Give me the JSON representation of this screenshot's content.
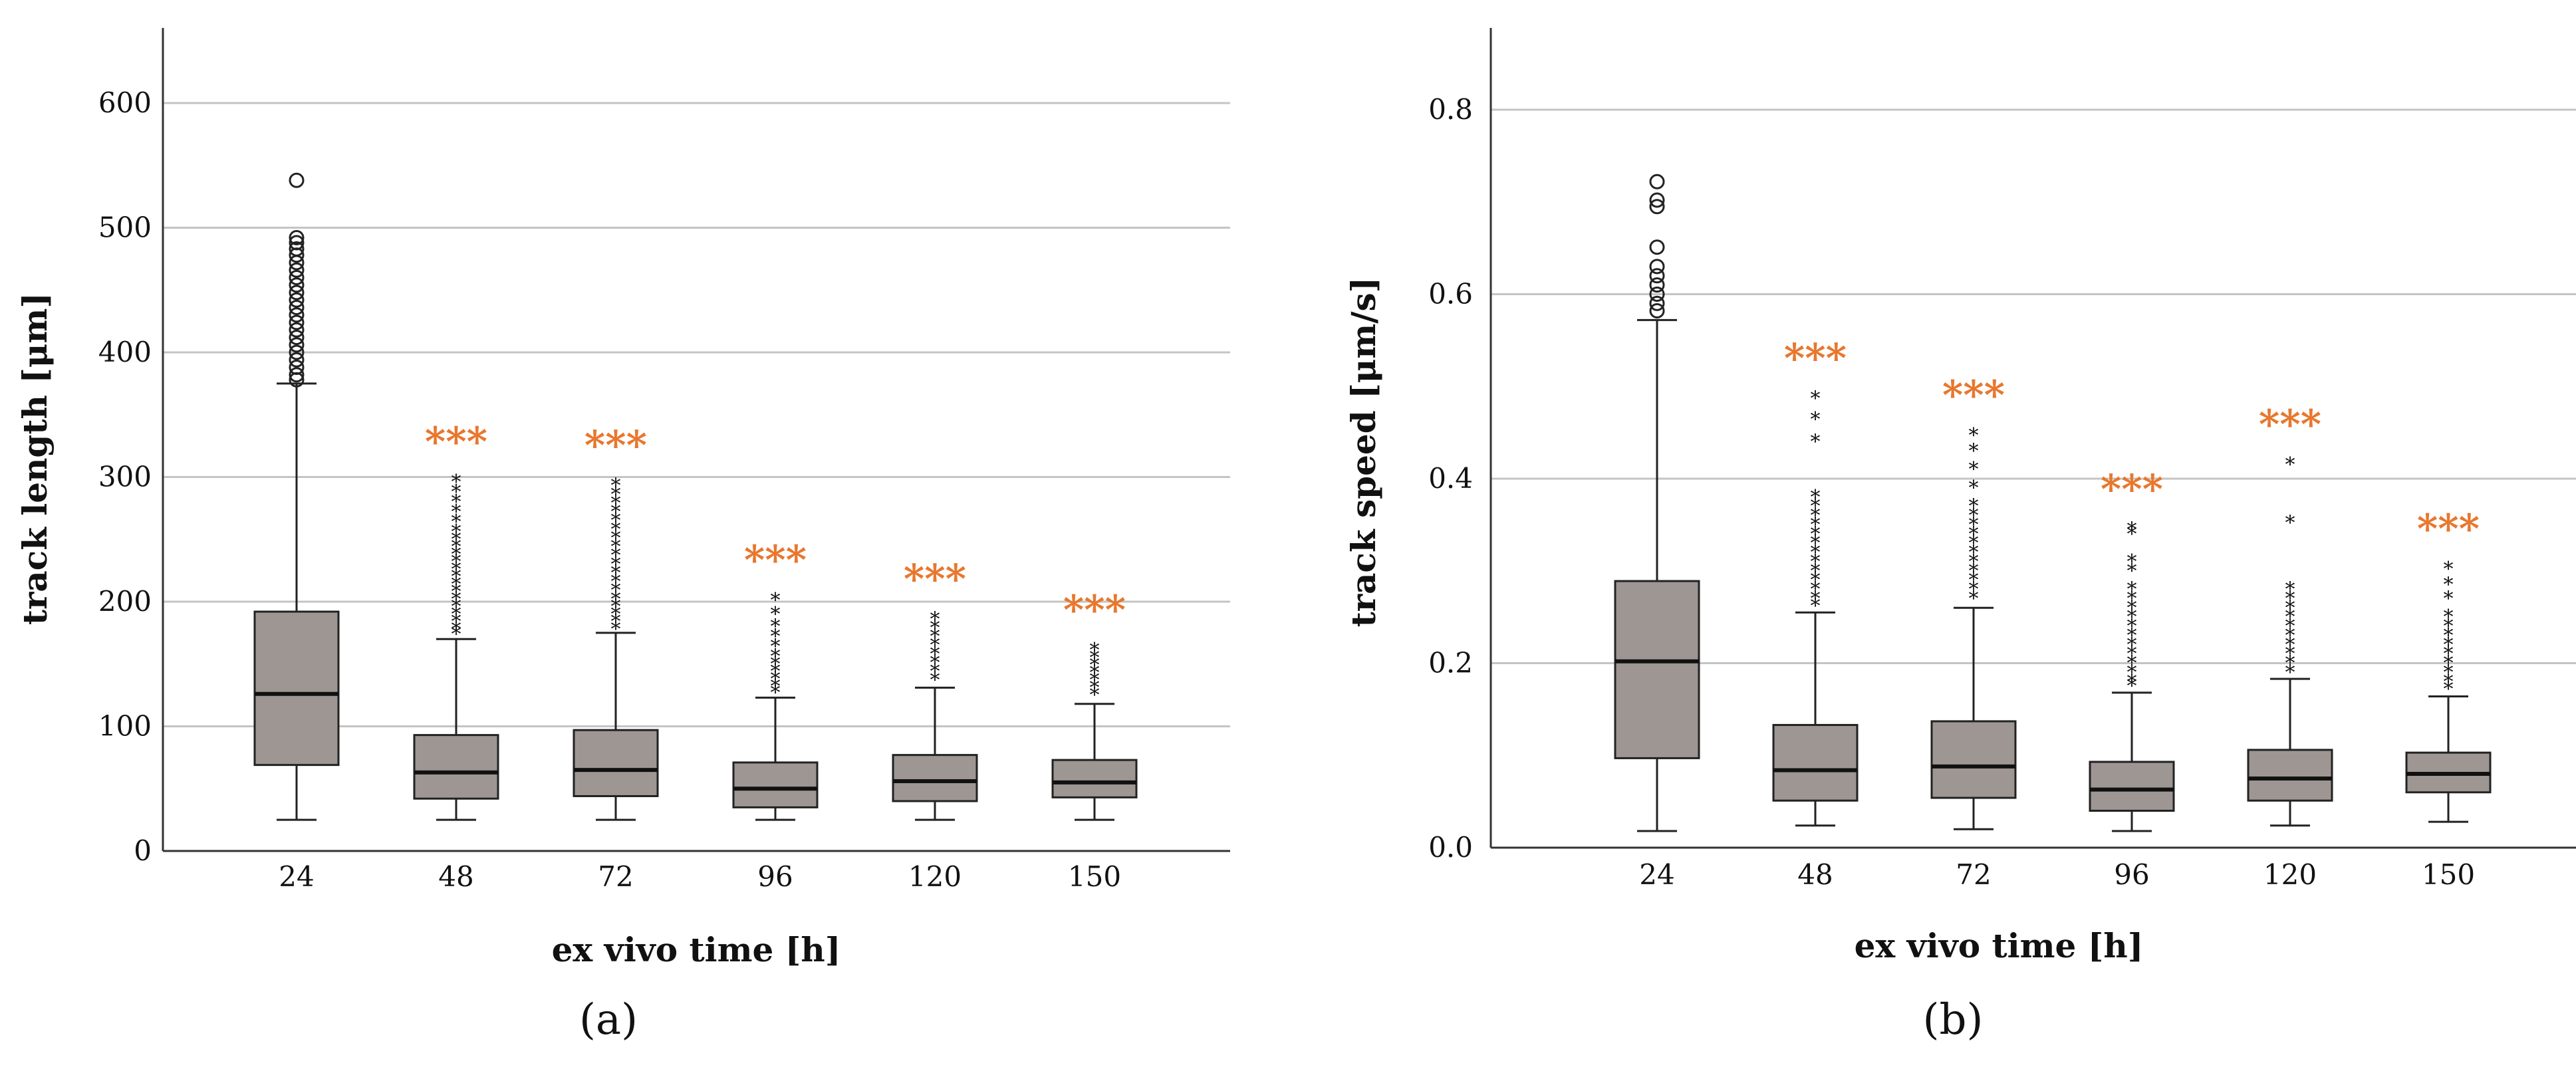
{
  "chart_data": [
    {
      "panel_label": "(a)",
      "type": "box",
      "xlabel": "ex vivo time [h]",
      "ylabel": "track length [μm]",
      "ylim": [
        0,
        660
      ],
      "yticks": [
        0,
        100,
        200,
        300,
        400,
        500,
        600
      ],
      "grid": true,
      "categories": [
        "24",
        "48",
        "72",
        "96",
        "120",
        "150"
      ],
      "boxes": [
        {
          "min": 25,
          "q1": 69,
          "median": 126,
          "q3": 192,
          "max": 375,
          "significance": "",
          "outliers_circle": [
            538,
            492,
            488,
            483,
            478,
            472,
            466,
            460,
            454,
            448,
            442,
            436,
            430,
            424,
            418,
            412,
            406,
            400,
            394,
            388,
            382,
            378
          ],
          "outliers_star": []
        },
        {
          "min": 25,
          "q1": 42,
          "median": 63,
          "q3": 93,
          "max": 170,
          "significance": "***",
          "outliers_circle": [],
          "outliers_star": [
            296,
            288,
            280,
            272,
            264,
            256,
            250,
            244,
            238,
            232,
            226,
            220,
            214,
            208,
            202,
            196,
            190,
            184,
            178,
            174
          ]
        },
        {
          "min": 25,
          "q1": 44,
          "median": 65,
          "q3": 97,
          "max": 175,
          "significance": "***",
          "outliers_circle": [],
          "outliers_star": [
            293,
            286,
            279,
            272,
            265,
            258,
            251,
            244,
            237,
            230,
            223,
            216,
            209,
            202,
            196,
            190,
            184,
            178
          ]
        },
        {
          "min": 25,
          "q1": 35,
          "median": 50,
          "q3": 71,
          "max": 123,
          "significance": "***",
          "outliers_circle": [],
          "outliers_star": [
            201,
            190,
            180,
            172,
            164,
            156,
            150,
            144,
            138,
            132,
            127
          ]
        },
        {
          "min": 25,
          "q1": 40,
          "median": 56,
          "q3": 77,
          "max": 131,
          "significance": "***",
          "outliers_circle": [],
          "outliers_star": [
            186,
            179,
            172,
            165,
            158,
            151,
            144,
            137
          ]
        },
        {
          "min": 25,
          "q1": 43,
          "median": 55,
          "q3": 73,
          "max": 118,
          "significance": "***",
          "outliers_circle": [],
          "outliers_star": [
            161,
            155,
            149,
            143,
            137,
            131,
            125
          ]
        }
      ]
    },
    {
      "panel_label": "(b)",
      "type": "box",
      "xlabel": "ex vivo time [h]",
      "ylabel": "track speed [μm/s]",
      "ylim": [
        0,
        0.89
      ],
      "yticks": [
        "0.0",
        "0.2",
        "0.4",
        "0.6",
        "0.8"
      ],
      "grid": true,
      "categories": [
        "24",
        "48",
        "72",
        "96",
        "120",
        "150"
      ],
      "boxes": [
        {
          "min": 0.018,
          "q1": 0.097,
          "median": 0.202,
          "q3": 0.289,
          "max": 0.572,
          "significance": "",
          "outliers_circle": [
            0.722,
            0.702,
            0.695,
            0.651,
            0.63,
            0.62,
            0.61,
            0.6,
            0.59,
            0.582
          ],
          "outliers_star": []
        },
        {
          "min": 0.024,
          "q1": 0.051,
          "median": 0.084,
          "q3": 0.133,
          "max": 0.255,
          "significance": "***",
          "outliers_circle": [],
          "outliers_star": [
            0.487,
            0.464,
            0.44,
            0.38,
            0.37,
            0.36,
            0.35,
            0.34,
            0.33,
            0.32,
            0.31,
            0.3,
            0.29,
            0.28,
            0.27,
            0.262
          ]
        },
        {
          "min": 0.02,
          "q1": 0.054,
          "median": 0.088,
          "q3": 0.137,
          "max": 0.26,
          "significance": "***",
          "outliers_circle": [],
          "outliers_star": [
            0.447,
            0.43,
            0.41,
            0.39,
            0.37,
            0.36,
            0.35,
            0.34,
            0.33,
            0.32,
            0.31,
            0.3,
            0.29,
            0.28,
            0.27
          ]
        },
        {
          "min": 0.018,
          "q1": 0.04,
          "median": 0.063,
          "q3": 0.093,
          "max": 0.168,
          "significance": "***",
          "outliers_circle": [],
          "outliers_star": [
            0.345,
            0.34,
            0.31,
            0.3,
            0.28,
            0.27,
            0.26,
            0.25,
            0.24,
            0.23,
            0.22,
            0.21,
            0.2,
            0.19,
            0.18,
            0.175
          ]
        },
        {
          "min": 0.024,
          "q1": 0.051,
          "median": 0.075,
          "q3": 0.106,
          "max": 0.183,
          "significance": "***",
          "outliers_circle": [],
          "outliers_star": [
            0.415,
            0.352,
            0.28,
            0.27,
            0.26,
            0.25,
            0.24,
            0.23,
            0.22,
            0.21,
            0.2,
            0.19
          ]
        },
        {
          "min": 0.028,
          "q1": 0.06,
          "median": 0.08,
          "q3": 0.103,
          "max": 0.164,
          "significance": "***",
          "outliers_circle": [],
          "outliers_star": [
            0.302,
            0.285,
            0.27,
            0.25,
            0.24,
            0.23,
            0.22,
            0.21,
            0.2,
            0.19,
            0.18,
            0.172
          ]
        }
      ]
    }
  ]
}
